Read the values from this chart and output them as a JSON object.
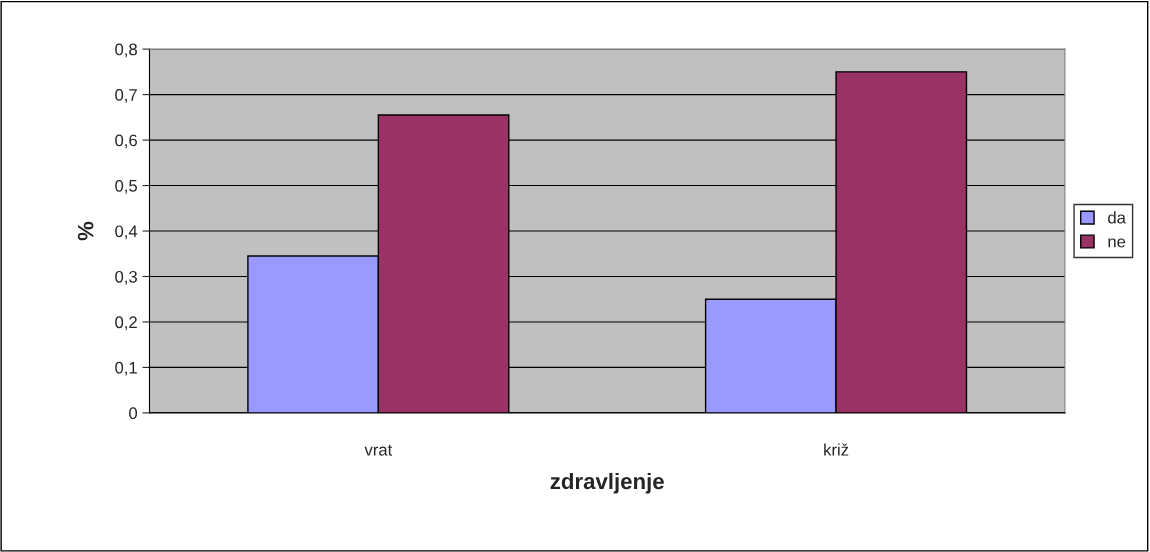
{
  "chart_data": {
    "type": "bar",
    "xlabel": "zdravljenje",
    "ylabel": "%",
    "categories": [
      "vrat",
      "križ"
    ],
    "series": [
      {
        "name": "da",
        "color": "#9999ff",
        "values": [
          0.345,
          0.25
        ]
      },
      {
        "name": "ne",
        "color": "#993366",
        "values": [
          0.655,
          0.75
        ]
      }
    ],
    "ylim": [
      0,
      0.8
    ],
    "yticks": [
      0,
      {
        "value": 0.1,
        "label": "0,1"
      },
      {
        "value": 0.2,
        "label": "0,2"
      },
      {
        "value": 0.3,
        "label": "0,3"
      },
      {
        "value": 0.4,
        "label": "0,4"
      },
      {
        "value": 0.5,
        "label": "0,5"
      },
      {
        "value": 0.6,
        "label": "0,6"
      },
      {
        "value": 0.7,
        "label": "0,7"
      },
      {
        "value": 0.8,
        "label": "0,8"
      }
    ],
    "grid": "y",
    "legend": "right"
  }
}
